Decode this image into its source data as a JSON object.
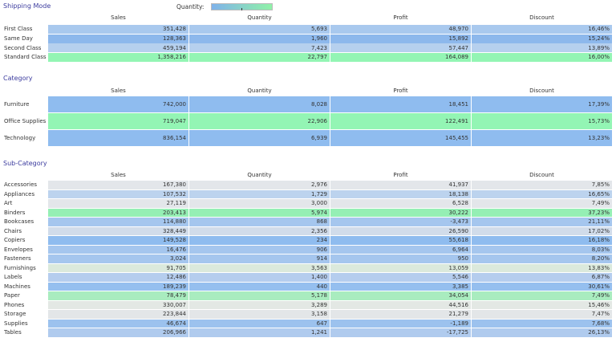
{
  "legend": {
    "label": "Quantity:"
  },
  "sections": [
    {
      "title": "Shipping Mode",
      "columns": [
        "Sales",
        "Quantity",
        "Profit",
        "Discount"
      ],
      "rows": [
        {
          "label": "First Class",
          "cells": [
            "351,428",
            "5,693",
            "48,970",
            "16,46%"
          ],
          "color": "#a9c9ee"
        },
        {
          "label": "Same Day",
          "cells": [
            "128,363",
            "1,960",
            "15,892",
            "15,24%"
          ],
          "color": "#8db8ec"
        },
        {
          "label": "Second Class",
          "cells": [
            "459,194",
            "7,423",
            "57,447",
            "13,89%"
          ],
          "color": "#b6d0ee"
        },
        {
          "label": "Standard Class",
          "cells": [
            "1,358,216",
            "22,797",
            "164,089",
            "16,00%"
          ],
          "color": "#93f5b4"
        }
      ]
    },
    {
      "title": "Category",
      "columns": [
        "Sales",
        "Quantity",
        "Profit",
        "Discount"
      ],
      "rows": [
        {
          "label": "Furniture",
          "cells": [
            "742,000",
            "8,028",
            "18,451",
            "17,39%"
          ],
          "color": "#8fbcef"
        },
        {
          "label": "Office Supplies",
          "cells": [
            "719,047",
            "22,906",
            "122,491",
            "15,73%"
          ],
          "color": "#93f5b4"
        },
        {
          "label": "Technology",
          "cells": [
            "836,154",
            "6,939",
            "145,455",
            "13,23%"
          ],
          "color": "#8fbcef"
        }
      ]
    },
    {
      "title": "Sub-Category",
      "columns": [
        "Sales",
        "Quantity",
        "Profit",
        "Discount"
      ],
      "rows": [
        {
          "label": "Accessories",
          "cells": [
            "167,380",
            "2,976",
            "41,937",
            "7,85%"
          ],
          "color": "#e3e6ea"
        },
        {
          "label": "Appliances",
          "cells": [
            "107,532",
            "1,729",
            "18,138",
            "16,65%"
          ],
          "color": "#bcd3ee"
        },
        {
          "label": "Art",
          "cells": [
            "27,119",
            "3,000",
            "6,528",
            "7,49%"
          ],
          "color": "#e3e6ea"
        },
        {
          "label": "Binders",
          "cells": [
            "203,413",
            "5,974",
            "30,222",
            "37,23%"
          ],
          "color": "#95efb4"
        },
        {
          "label": "Bookcases",
          "cells": [
            "114,880",
            "868",
            "-3,473",
            "21,11%"
          ],
          "color": "#a5c6ee"
        },
        {
          "label": "Chairs",
          "cells": [
            "328,449",
            "2,356",
            "26,590",
            "17,02%"
          ],
          "color": "#d1dcea"
        },
        {
          "label": "Copiers",
          "cells": [
            "149,528",
            "234",
            "55,618",
            "16,18%"
          ],
          "color": "#8fbcef"
        },
        {
          "label": "Envelopes",
          "cells": [
            "16,476",
            "906",
            "6,964",
            "8,03%"
          ],
          "color": "#a5c6ee"
        },
        {
          "label": "Fasteners",
          "cells": [
            "3,024",
            "914",
            "950",
            "8,20%"
          ],
          "color": "#a5c6ee"
        },
        {
          "label": "Furnishings",
          "cells": [
            "91,705",
            "3,563",
            "13,059",
            "13,83%"
          ],
          "color": "#dbe9dc"
        },
        {
          "label": "Labels",
          "cells": [
            "12,486",
            "1,400",
            "5,546",
            "6,87%"
          ],
          "color": "#b5cdee"
        },
        {
          "label": "Machines",
          "cells": [
            "189,239",
            "440",
            "3,385",
            "30,61%"
          ],
          "color": "#95bfef"
        },
        {
          "label": "Paper",
          "cells": [
            "78,479",
            "5,178",
            "34,054",
            "7,49%"
          ],
          "color": "#a9ecbf"
        },
        {
          "label": "Phones",
          "cells": [
            "330,007",
            "3,289",
            "44,516",
            "15,46%"
          ],
          "color": "#e3e8e4"
        },
        {
          "label": "Storage",
          "cells": [
            "223,844",
            "3,158",
            "21,279",
            "7,47%"
          ],
          "color": "#e3e6e8"
        },
        {
          "label": "Supplies",
          "cells": [
            "46,674",
            "647",
            "-1,189",
            "7,68%"
          ],
          "color": "#9cc2ee"
        },
        {
          "label": "Tables",
          "cells": [
            "206,966",
            "1,241",
            "-17,725",
            "26,13%"
          ],
          "color": "#b0cbee"
        }
      ]
    }
  ]
}
